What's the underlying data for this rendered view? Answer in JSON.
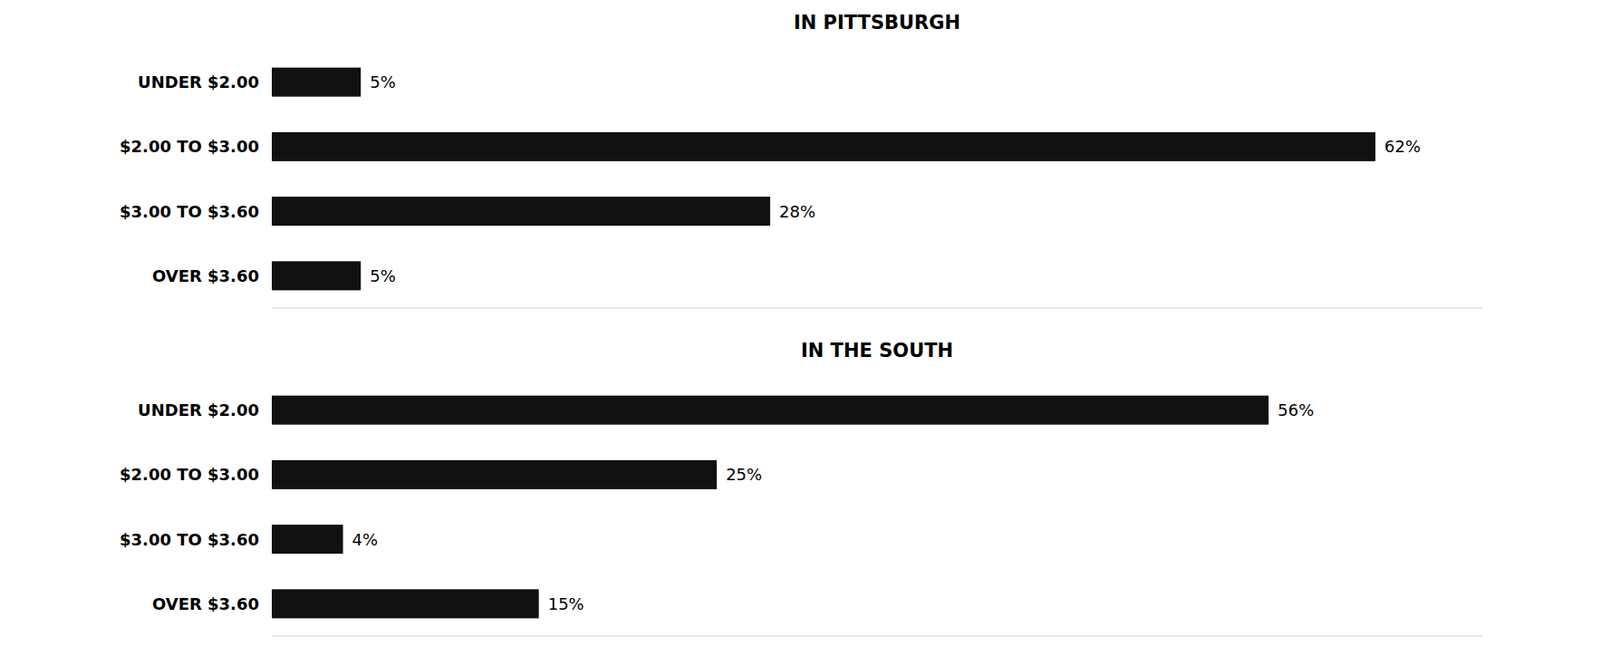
{
  "chart_data": [
    {
      "type": "bar",
      "orientation": "horizontal",
      "title": "IN PITTSBURGH",
      "categories": [
        "UNDER $2.00",
        "$2.00 TO $3.00",
        "$3.00 TO $3.60",
        "OVER $3.60"
      ],
      "values": [
        5,
        62,
        28,
        5
      ],
      "value_labels": [
        "5%",
        "62%",
        "28%",
        "5%"
      ],
      "color": "#111111",
      "xlim": [
        0,
        68
      ],
      "grid": false,
      "data_labels": true,
      "tick_labels": "y"
    },
    {
      "type": "bar",
      "orientation": "horizontal",
      "title": "IN THE SOUTH",
      "categories": [
        "UNDER $2.00",
        "$2.00 TO $3.00",
        "$3.00 TO $3.60",
        "OVER $3.60"
      ],
      "values": [
        56,
        25,
        4,
        15
      ],
      "value_labels": [
        "56%",
        "25%",
        "4%",
        "15%"
      ],
      "color": "#111111",
      "xlim": [
        0,
        68
      ],
      "grid": false,
      "data_labels": true,
      "tick_labels": "y"
    }
  ]
}
